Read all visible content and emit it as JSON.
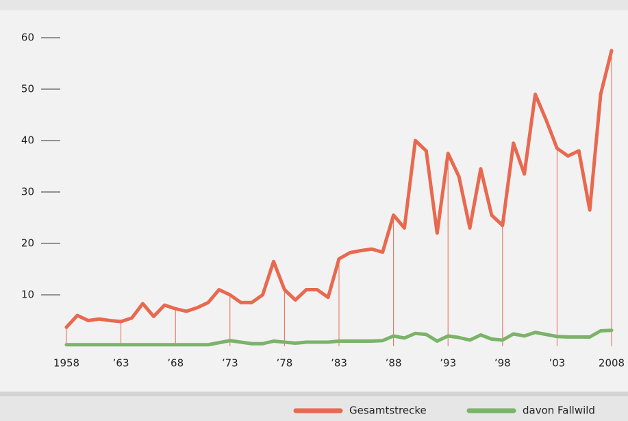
{
  "chart_data": {
    "type": "line",
    "x": [
      1958,
      1959,
      1960,
      1961,
      1962,
      1963,
      1964,
      1965,
      1966,
      1967,
      1968,
      1969,
      1970,
      1971,
      1972,
      1973,
      1974,
      1975,
      1976,
      1977,
      1978,
      1979,
      1980,
      1981,
      1982,
      1983,
      1984,
      1985,
      1986,
      1987,
      1988,
      1989,
      1990,
      1991,
      1992,
      1993,
      1994,
      1995,
      1996,
      1997,
      1998,
      1999,
      2000,
      2001,
      2002,
      2003,
      2004,
      2005,
      2006,
      2007,
      2008
    ],
    "series": [
      {
        "name": "Gesamtstrecke",
        "color": "#e8694f",
        "values": [
          3.7,
          6,
          5,
          5.3,
          5,
          4.8,
          5.5,
          8.3,
          5.8,
          8,
          7.3,
          6.8,
          7.5,
          8.5,
          11,
          10,
          8.5,
          8.5,
          10,
          16.5,
          11,
          9,
          11,
          11,
          9.5,
          17,
          18.2,
          18.6,
          18.9,
          18.3,
          25.5,
          23,
          40,
          38,
          22,
          37.5,
          33,
          23,
          34.5,
          25.5,
          23.5,
          39.5,
          33.5,
          49,
          44,
          38.5,
          37,
          38,
          26.5,
          49,
          57.5
        ]
      },
      {
        "name": "davon Fallwild",
        "color": "#7bb368",
        "values": [
          0.3,
          0.3,
          0.3,
          0.3,
          0.3,
          0.3,
          0.3,
          0.3,
          0.3,
          0.3,
          0.3,
          0.3,
          0.3,
          0.3,
          0.7,
          1.1,
          0.8,
          0.5,
          0.5,
          1,
          0.8,
          0.6,
          0.8,
          0.8,
          0.8,
          1,
          1,
          1,
          1,
          1.1,
          2,
          1.6,
          2.5,
          2.3,
          1,
          2,
          1.7,
          1.2,
          2.2,
          1.4,
          1.2,
          2.4,
          2,
          2.7,
          2.3,
          1.9,
          1.8,
          1.8,
          1.8,
          3,
          3.1
        ]
      }
    ],
    "xlim": [
      1958,
      2008
    ],
    "xticks": [
      {
        "value": 1958,
        "label": "1958"
      },
      {
        "value": 1963,
        "label": "’63"
      },
      {
        "value": 1968,
        "label": "’68"
      },
      {
        "value": 1973,
        "label": "’73"
      },
      {
        "value": 1978,
        "label": "’78"
      },
      {
        "value": 1983,
        "label": "’83"
      },
      {
        "value": 1988,
        "label": "’88"
      },
      {
        "value": 1993,
        "label": "’93"
      },
      {
        "value": 1998,
        "label": "’98"
      },
      {
        "value": 2003,
        "label": "’03"
      },
      {
        "value": 2008,
        "label": "2008"
      }
    ],
    "ylim": [
      0,
      60
    ],
    "yticks": [
      10,
      20,
      30,
      40,
      50,
      60
    ],
    "legend": "bottom-right"
  }
}
